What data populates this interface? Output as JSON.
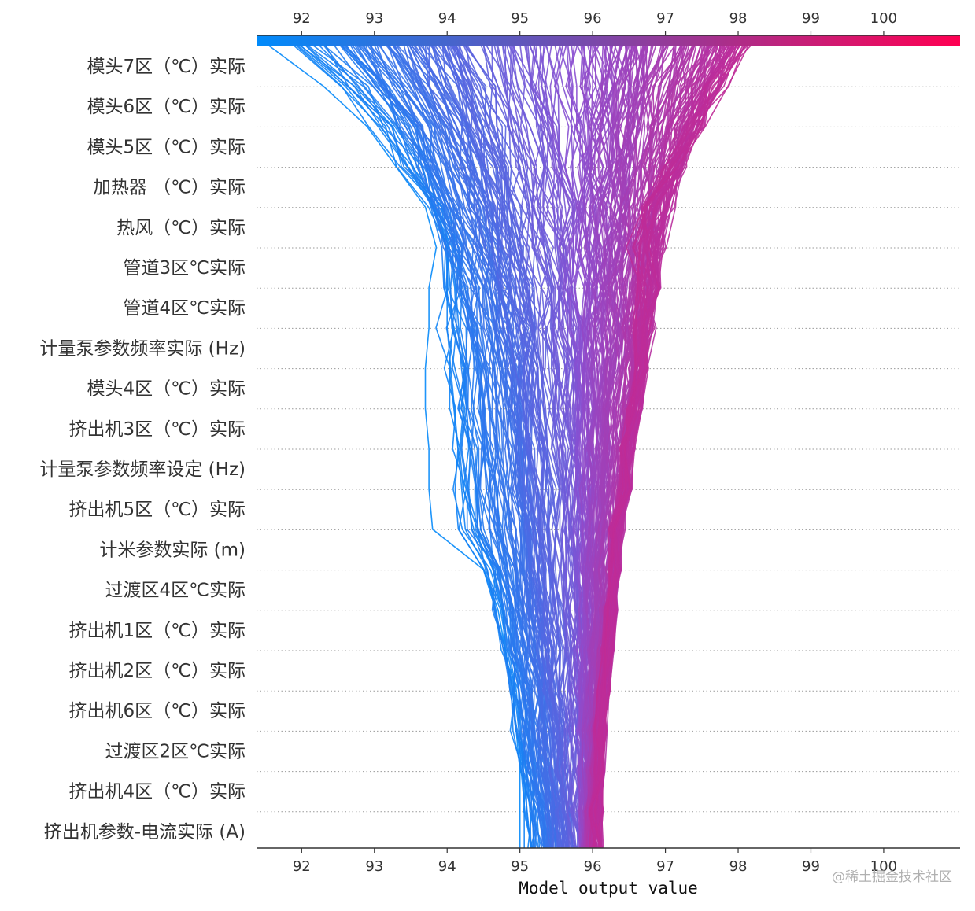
{
  "chart_data": {
    "type": "line",
    "subtype": "shap-decision-plot",
    "xlabel": "Model output value",
    "xlim": [
      91.38,
      101.05
    ],
    "x_ticks": [
      92,
      93,
      94,
      95,
      96,
      97,
      98,
      99,
      100
    ],
    "x_tick_labels_top": [
      "92",
      "93",
      "94",
      "95",
      "96",
      "97",
      "98",
      "99",
      "100"
    ],
    "x_tick_labels_bottom": [
      "92",
      "93",
      "94",
      "95",
      "96",
      "97",
      "98",
      "99",
      "100"
    ],
    "colorbar": {
      "position": "top",
      "range": [
        91.38,
        101.05
      ],
      "colors": [
        "#008bfb",
        "#ff0052"
      ]
    },
    "grid": "dotted horizontal",
    "features_top_to_bottom": [
      "模头7区（℃）实际",
      "模头6区（℃）实际",
      "模头5区（℃）实际",
      "加热器 （℃）实际",
      "热风（℃）实际",
      "管道3区℃实际",
      "管道4区℃实际",
      "计量泵参数频率实际 (Hz)",
      "模头4区（℃）实际",
      "挤出机3区（℃）实际",
      "计量泵参数频率设定 (Hz)",
      "挤出机5区（℃）实际",
      "计米参数实际 (m)",
      "过渡区4区℃实际",
      "挤出机1区（℃）实际",
      "挤出机2区（℃）实际",
      "挤出机6区（℃）实际",
      "过渡区2区℃实际",
      "挤出机4区（℃）实际",
      "挤出机参数-电流实际 (A)"
    ],
    "base_value": 95.9,
    "outputs_range": [
      91.5,
      98.1
    ],
    "sample_count_estimate": 300,
    "representative_paths": [
      [
        91.55,
        92.3,
        92.9,
        93.3,
        93.7,
        93.85,
        93.75,
        93.75,
        93.7,
        93.7,
        93.75,
        93.75,
        93.8,
        94.5,
        94.7,
        94.8,
        94.9,
        94.95,
        95.0,
        95.0,
        95.0
      ],
      [
        91.95,
        92.6,
        93.05,
        93.45,
        93.8,
        94.0,
        94.0,
        94.0,
        94.05,
        94.1,
        94.15,
        94.2,
        94.25,
        94.55,
        94.65,
        94.8,
        94.9,
        94.95,
        95.05,
        95.1,
        95.15
      ],
      [
        92.7,
        93.15,
        93.5,
        93.75,
        93.95,
        94.1,
        94.25,
        94.35,
        94.45,
        94.5,
        94.55,
        94.6,
        94.65,
        94.8,
        94.9,
        94.95,
        95.05,
        95.1,
        95.2,
        95.3,
        95.35
      ],
      [
        93.2,
        93.55,
        93.85,
        94.1,
        94.3,
        94.45,
        94.6,
        94.7,
        94.8,
        94.85,
        94.9,
        94.95,
        95.0,
        95.05,
        95.1,
        95.2,
        95.25,
        95.3,
        95.35,
        95.4,
        95.45
      ],
      [
        93.8,
        94.05,
        94.3,
        94.5,
        94.65,
        94.75,
        94.85,
        94.95,
        95.0,
        95.05,
        95.1,
        95.15,
        95.2,
        95.25,
        95.3,
        95.35,
        95.4,
        95.45,
        95.5,
        95.55,
        95.6
      ],
      [
        94.5,
        94.7,
        94.85,
        95.0,
        95.1,
        95.2,
        95.3,
        95.35,
        95.4,
        95.45,
        95.5,
        95.55,
        95.55,
        95.6,
        95.6,
        95.65,
        95.65,
        95.7,
        95.7,
        95.72,
        95.75
      ],
      [
        95.2,
        95.3,
        95.4,
        95.5,
        95.55,
        95.6,
        95.65,
        95.7,
        95.72,
        95.75,
        95.77,
        95.8,
        95.8,
        95.82,
        95.83,
        95.84,
        95.85,
        95.86,
        95.87,
        95.88,
        95.89
      ],
      [
        96.0,
        96.0,
        95.98,
        95.97,
        95.97,
        95.96,
        95.96,
        95.95,
        95.95,
        95.94,
        95.94,
        95.93,
        95.93,
        95.92,
        95.92,
        95.91,
        95.91,
        95.9,
        95.9,
        95.9,
        95.9
      ],
      [
        96.7,
        96.6,
        96.5,
        96.45,
        96.4,
        96.35,
        96.3,
        96.3,
        96.25,
        96.2,
        96.2,
        96.15,
        96.15,
        96.1,
        96.1,
        96.05,
        96.05,
        96.0,
        96.0,
        95.95,
        95.95
      ],
      [
        97.3,
        97.1,
        96.95,
        96.85,
        96.75,
        96.7,
        96.65,
        96.6,
        96.55,
        96.5,
        96.45,
        96.4,
        96.35,
        96.3,
        96.25,
        96.2,
        96.15,
        96.1,
        96.05,
        96.0,
        96.0
      ],
      [
        97.8,
        97.55,
        97.35,
        97.15,
        97.0,
        96.9,
        96.8,
        96.75,
        96.7,
        96.6,
        96.5,
        96.45,
        96.35,
        96.3,
        96.25,
        96.2,
        96.15,
        96.1,
        96.1,
        96.05,
        96.05
      ],
      [
        98.1,
        97.75,
        97.45,
        97.1,
        96.75,
        96.55,
        96.75,
        96.7,
        96.65,
        96.55,
        96.45,
        96.45,
        96.3,
        96.3,
        96.25,
        96.2,
        96.15,
        96.1,
        96.1,
        96.05,
        96.05
      ]
    ]
  },
  "watermark": "@稀土掘金技术社区"
}
